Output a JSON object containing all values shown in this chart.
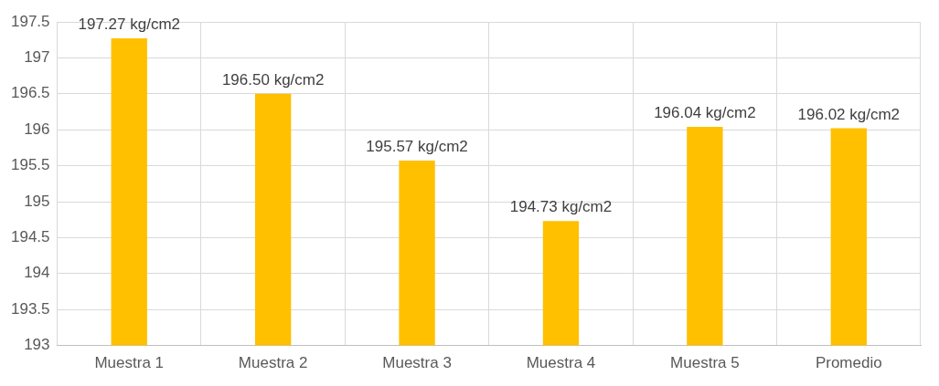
{
  "chart_data": {
    "type": "bar",
    "categories": [
      "Muestra 1",
      "Muestra 2",
      "Muestra 3",
      "Muestra 4",
      "Muestra 5",
      "Promedio"
    ],
    "values": [
      197.27,
      196.5,
      195.57,
      194.73,
      196.04,
      196.02
    ],
    "value_labels": [
      "197.27 kg/cm2",
      "196.50 kg/cm2",
      "195.57 kg/cm2",
      "194.73 kg/cm2",
      "196.04 kg/cm2",
      "196.02 kg/cm2"
    ],
    "color": "#ffc000",
    "ylim": [
      193,
      197.5
    ],
    "yticks": [
      193,
      193.5,
      194,
      194.5,
      195,
      195.5,
      196,
      196.5,
      197,
      197.5
    ],
    "grid": true
  }
}
